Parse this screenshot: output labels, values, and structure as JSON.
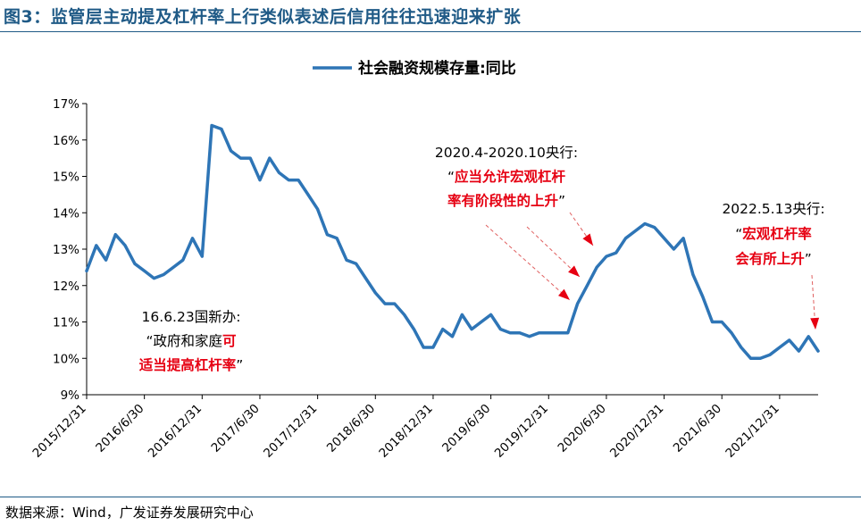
{
  "figure_title": "图3：监管层主动提及杠杆率上行类似表述后信用往往迅速迎来扩张",
  "source": "数据来源：Wind，广发证券发展研究中心",
  "colors": {
    "line": "#2e75b6",
    "accent_red": "#e60012",
    "title_blue": "#1f5a86"
  },
  "chart_data": {
    "type": "line",
    "title": "",
    "xlabel": "",
    "ylabel": "",
    "ylim": [
      9,
      17
    ],
    "y_ticks": [
      "9%",
      "10%",
      "11%",
      "12%",
      "13%",
      "14%",
      "15%",
      "16%",
      "17%"
    ],
    "x_ticks": [
      "2015/12/31",
      "2016/6/30",
      "2016/12/31",
      "2017/6/30",
      "2017/12/31",
      "2018/6/30",
      "2018/12/31",
      "2019/6/30",
      "2019/12/31",
      "2020/6/30",
      "2020/12/31",
      "2021/6/30",
      "2021/12/31"
    ],
    "legend": {
      "placement": "top-center"
    },
    "grid": false,
    "series": [
      {
        "name": "社会融资规模存量:同比",
        "x": [
          "2015-12",
          "2016-01",
          "2016-02",
          "2016-03",
          "2016-04",
          "2016-05",
          "2016-06",
          "2016-07",
          "2016-08",
          "2016-09",
          "2016-10",
          "2016-11",
          "2016-12",
          "2017-01",
          "2017-02",
          "2017-03",
          "2017-04",
          "2017-05",
          "2017-06",
          "2017-07",
          "2017-08",
          "2017-09",
          "2017-10",
          "2017-11",
          "2017-12",
          "2018-01",
          "2018-02",
          "2018-03",
          "2018-04",
          "2018-05",
          "2018-06",
          "2018-07",
          "2018-08",
          "2018-09",
          "2018-10",
          "2018-11",
          "2018-12",
          "2019-01",
          "2019-02",
          "2019-03",
          "2019-04",
          "2019-05",
          "2019-06",
          "2019-07",
          "2019-08",
          "2019-09",
          "2019-10",
          "2019-11",
          "2019-12",
          "2020-01",
          "2020-02",
          "2020-03",
          "2020-04",
          "2020-05",
          "2020-06",
          "2020-07",
          "2020-08",
          "2020-09",
          "2020-10",
          "2020-11",
          "2020-12",
          "2021-01",
          "2021-02",
          "2021-03",
          "2021-04",
          "2021-05",
          "2021-06",
          "2021-07",
          "2021-08",
          "2021-09",
          "2021-10",
          "2021-11",
          "2021-12",
          "2022-01",
          "2022-02",
          "2022-03",
          "2022-04"
        ],
        "values": [
          12.4,
          13.1,
          12.7,
          13.4,
          13.1,
          12.6,
          12.4,
          12.2,
          12.3,
          12.5,
          12.7,
          13.3,
          12.8,
          16.4,
          16.3,
          15.7,
          15.5,
          15.5,
          14.9,
          15.5,
          15.1,
          14.9,
          14.9,
          14.5,
          14.1,
          13.4,
          13.3,
          12.7,
          12.6,
          12.2,
          11.8,
          11.5,
          11.5,
          11.2,
          10.8,
          10.3,
          10.3,
          10.8,
          10.6,
          11.2,
          10.8,
          11.0,
          11.2,
          10.8,
          10.7,
          10.7,
          10.6,
          10.7,
          10.7,
          10.7,
          10.7,
          11.5,
          12.0,
          12.5,
          12.8,
          12.9,
          13.3,
          13.5,
          13.7,
          13.6,
          13.3,
          13.0,
          13.3,
          12.3,
          11.7,
          11.0,
          11.0,
          10.7,
          10.3,
          10.0,
          10.0,
          10.1,
          10.3,
          10.5,
          10.2,
          10.6,
          10.2
        ]
      }
    ],
    "annotations": [
      {
        "lines": [
          [
            {
              "text": "16.6.23国新办:",
              "color": "black"
            }
          ],
          [
            {
              "text": "“政府和家庭",
              "color": "black"
            },
            {
              "text": "可",
              "color": "red"
            }
          ],
          [
            {
              "text": "适当提高杠杆率",
              "color": "red"
            },
            {
              "text": "”",
              "color": "black"
            }
          ]
        ]
      },
      {
        "lines": [
          [
            {
              "text": "2020.4-2020.10央行:",
              "color": "black"
            }
          ],
          [
            {
              "text": "“",
              "color": "black"
            },
            {
              "text": "应当允许宏观杠杆",
              "color": "red"
            }
          ],
          [
            {
              "text": "率有阶段性的上升",
              "color": "red"
            },
            {
              "text": "”",
              "color": "black"
            }
          ]
        ]
      },
      {
        "lines": [
          [
            {
              "text": "2022.5.13央行:",
              "color": "black"
            }
          ],
          [
            {
              "text": "“",
              "color": "black"
            },
            {
              "text": "宏观杠杆率",
              "color": "red"
            }
          ],
          [
            {
              "text": "会有所上升",
              "color": "red"
            },
            {
              "text": "”",
              "color": "black"
            }
          ]
        ]
      }
    ]
  }
}
